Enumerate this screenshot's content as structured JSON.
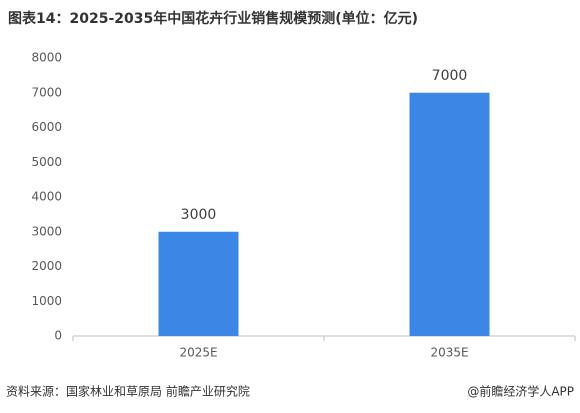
{
  "chart_data": {
    "type": "bar",
    "title": "图表14：2025-2035年中国花卉行业销售规模预测(单位：亿元)",
    "categories": [
      "2025E",
      "2035E"
    ],
    "values": [
      3000,
      7000
    ],
    "color": "#3c86e6",
    "ylim": [
      0,
      8000
    ],
    "yticks": [
      0,
      1000,
      2000,
      3000,
      4000,
      5000,
      6000,
      7000,
      8000
    ],
    "grid": false,
    "source": "资料来源：国家林业和草原局 前瞻产业研究院",
    "credit": "@前瞻经济学人APP"
  }
}
